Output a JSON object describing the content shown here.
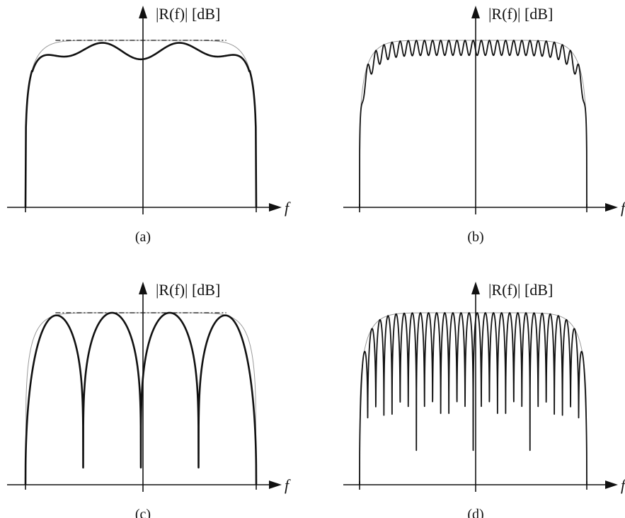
{
  "chart_data": [
    {
      "id": "a",
      "type": "line",
      "caption": "(a)",
      "ylabel": "|R(f)| [dB]",
      "xlabel": "f",
      "dashed_reference": true,
      "response": {
        "ripples": 3,
        "ripple_depth": 0.1,
        "style": "smooth"
      }
    },
    {
      "id": "b",
      "type": "line",
      "caption": "(b)",
      "ylabel": "|R(f)| [dB]",
      "xlabel": "f",
      "dashed_reference": false,
      "response": {
        "ripples": 28,
        "ripple_depth": 0.09,
        "style": "fine-ripple"
      }
    },
    {
      "id": "c",
      "type": "line",
      "caption": "(c)",
      "ylabel": "|R(f)| [dB]",
      "xlabel": "f",
      "dashed_reference": true,
      "response": {
        "lobes": 4,
        "null_depth": 0.9,
        "style": "lobes"
      }
    },
    {
      "id": "d",
      "type": "line",
      "caption": "(d)",
      "ylabel": "|R(f)| [dB]",
      "xlabel": "f",
      "dashed_reference": false,
      "response": {
        "lobes": 28,
        "null_depth": 0.8,
        "style": "lobes"
      }
    }
  ]
}
